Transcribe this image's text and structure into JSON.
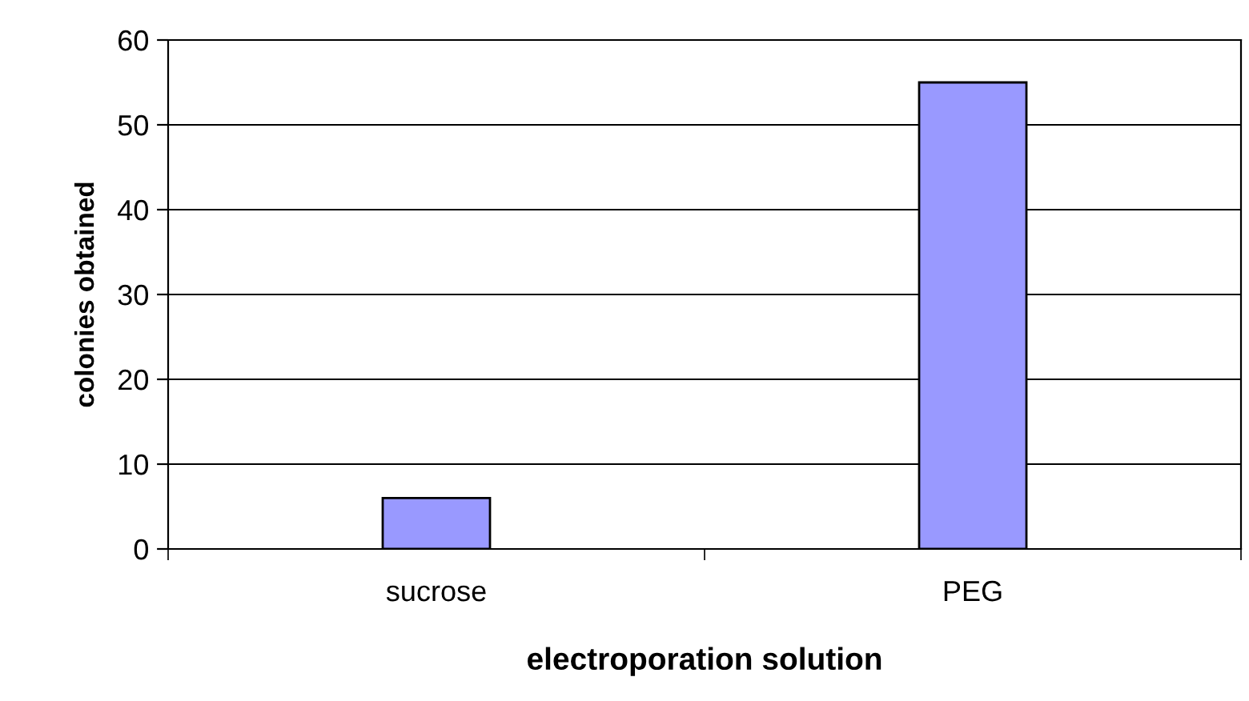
{
  "chart_data": {
    "type": "bar",
    "xlabel": "electroporation solution",
    "ylabel": "colonies obtained",
    "categories": [
      "sucrose",
      "PEG"
    ],
    "values": [
      6,
      55
    ],
    "color": "#9999ff",
    "ylim": [
      0,
      60
    ],
    "yticks": [
      0,
      10,
      20,
      30,
      40,
      50,
      60
    ],
    "grid": "y",
    "legend": false
  }
}
